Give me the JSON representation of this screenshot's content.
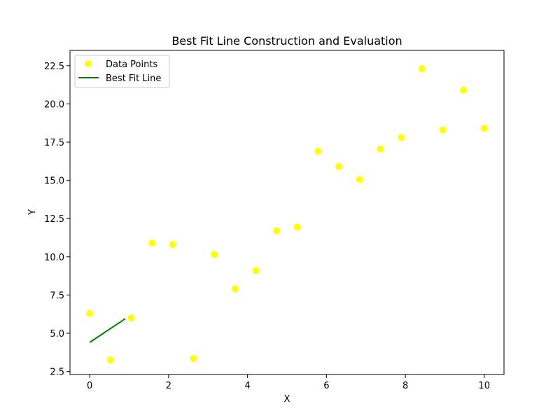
{
  "chart_data": {
    "type": "scatter",
    "title": "Best Fit Line Construction and Evaluation",
    "xlabel": "X",
    "ylabel": "Y",
    "xlim": [
      -0.5,
      10.5
    ],
    "ylim": [
      2.3,
      23.5
    ],
    "xticks": [
      0,
      2,
      4,
      6,
      8,
      10
    ],
    "yticks": [
      2.5,
      5.0,
      7.5,
      10.0,
      12.5,
      15.0,
      17.5,
      20.0,
      22.5
    ],
    "ytick_labels": [
      "2.5",
      "5.0",
      "7.5",
      "10.0",
      "12.5",
      "15.0",
      "17.5",
      "20.0",
      "22.5"
    ],
    "grid": false,
    "legend_position": "upper-left",
    "series": [
      {
        "name": "Data Points",
        "kind": "scatter",
        "color": "#ffff00",
        "x": [
          0.0,
          0.526,
          1.053,
          1.579,
          2.105,
          2.632,
          3.158,
          3.684,
          4.211,
          4.737,
          5.263,
          5.789,
          6.316,
          6.842,
          7.368,
          7.895,
          8.421,
          8.947,
          9.474,
          10.0
        ],
        "y": [
          6.3,
          3.25,
          6.0,
          10.9,
          10.8,
          3.35,
          10.15,
          7.9,
          9.1,
          11.7,
          11.95,
          16.9,
          15.9,
          15.05,
          17.05,
          17.8,
          22.3,
          18.3,
          20.9,
          18.4
        ]
      },
      {
        "name": "Best Fit Line",
        "kind": "line",
        "color": "#008000",
        "x": [
          0.0,
          0.9
        ],
        "y": [
          4.4,
          5.95
        ]
      }
    ]
  }
}
